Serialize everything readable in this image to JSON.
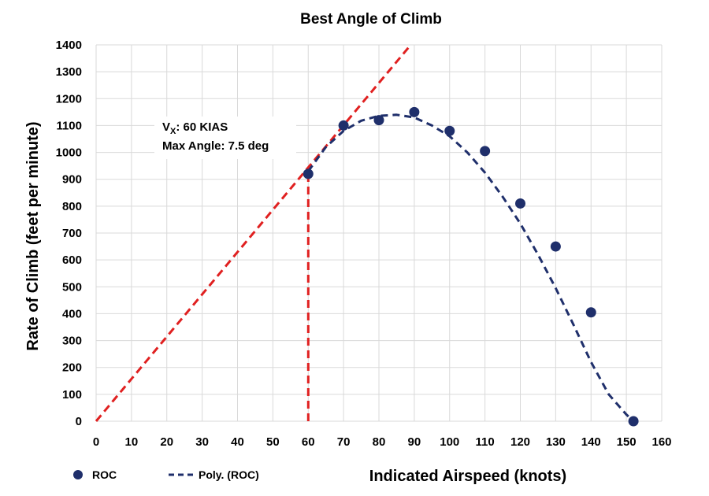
{
  "chart_data": {
    "type": "scatter",
    "title": "Best Angle of Climb",
    "xlabel": "Indicated Airspeed (knots)",
    "ylabel": "Rate of Climb (feet per minute)",
    "xlim": [
      0,
      160
    ],
    "ylim": [
      0,
      1400
    ],
    "xticks": [
      "0",
      "10",
      "20",
      "30",
      "40",
      "50",
      "60",
      "70",
      "80",
      "90",
      "100",
      "110",
      "120",
      "130",
      "140",
      "150",
      "160"
    ],
    "yticks": [
      "0",
      "100",
      "200",
      "300",
      "400",
      "500",
      "600",
      "700",
      "800",
      "900",
      "1000",
      "1100",
      "1200",
      "1300",
      "1400"
    ],
    "grid": true,
    "legend_position": "bottom-left",
    "series": [
      {
        "name": "ROC",
        "kind": "scatter",
        "color": "#1f2f6b",
        "x": [
          60,
          70,
          80,
          90,
          100,
          110,
          120,
          130,
          140,
          152
        ],
        "y": [
          920,
          1100,
          1120,
          1150,
          1080,
          1005,
          810,
          650,
          405,
          0
        ]
      },
      {
        "name": "Poly. (ROC)",
        "kind": "trendline",
        "style": "dashed",
        "color": "#1f2f6b",
        "x": [
          60,
          65,
          70,
          75,
          80,
          85,
          90,
          95,
          100,
          105,
          110,
          115,
          120,
          125,
          130,
          135,
          140,
          145,
          150,
          152
        ],
        "y": [
          930,
          1020,
          1080,
          1118,
          1136,
          1140,
          1130,
          1100,
          1060,
          1000,
          925,
          835,
          735,
          620,
          495,
          360,
          220,
          100,
          25,
          0
        ]
      },
      {
        "kind": "tangent",
        "style": "dashed",
        "color": "#e02020",
        "x": [
          0,
          89
        ],
        "y": [
          0,
          1400
        ]
      },
      {
        "kind": "vertical-marker",
        "style": "dashed",
        "color": "#e02020",
        "x": [
          60,
          60
        ],
        "y": [
          0,
          920
        ]
      }
    ],
    "annotations": {
      "vx_prefix": "V",
      "vx_subscript": "X",
      "vx_value": ": 60 KIAS",
      "max_angle": "Max Angle: 7.5 deg"
    }
  }
}
